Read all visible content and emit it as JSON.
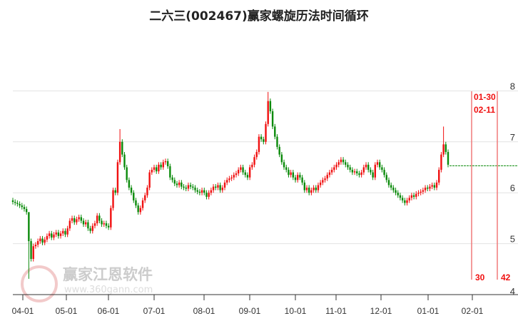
{
  "chart_data": {
    "type": "candlestick",
    "title": "二六三(002467)赢家螺旋历法时间循环",
    "yticks": [
      8,
      7,
      6,
      5,
      4
    ],
    "ylim": [
      4,
      8
    ],
    "xticks": [
      "04-01",
      "05-01",
      "06-01",
      "07-01",
      "08-01",
      "09-01",
      "10-01",
      "11-01",
      "12-01",
      "01-01",
      "02-01"
    ],
    "first_open": 5.85,
    "closes": [
      5.82,
      5.8,
      5.78,
      5.75,
      5.72,
      5.68,
      5.62,
      5.05,
      4.7,
      4.95,
      4.98,
      5.05,
      5.1,
      5.02,
      5.08,
      5.15,
      5.2,
      5.12,
      5.18,
      5.22,
      5.15,
      5.2,
      5.25,
      5.18,
      5.3,
      5.45,
      5.5,
      5.42,
      5.48,
      5.52,
      5.45,
      5.38,
      5.42,
      5.3,
      5.25,
      5.35,
      5.4,
      5.55,
      5.45,
      5.38,
      5.4,
      5.35,
      5.32,
      5.7,
      6.05,
      6.0,
      6.6,
      7.0,
      6.75,
      6.5,
      6.25,
      6.1,
      6.0,
      5.85,
      5.75,
      5.62,
      5.7,
      5.85,
      5.95,
      6.1,
      6.4,
      6.45,
      6.5,
      6.42,
      6.55,
      6.5,
      6.6,
      6.62,
      6.52,
      6.3,
      6.25,
      6.18,
      6.15,
      6.2,
      6.12,
      6.1,
      6.08,
      6.15,
      6.12,
      6.1,
      6.05,
      6.02,
      6.0,
      6.05,
      6.0,
      5.92,
      6.0,
      6.05,
      6.12,
      6.1,
      6.15,
      6.05,
      6.1,
      6.2,
      6.25,
      6.28,
      6.3,
      6.35,
      6.38,
      6.45,
      6.5,
      6.4,
      6.35,
      6.3,
      6.5,
      6.55,
      6.7,
      6.8,
      7.1,
      7.05,
      7.0,
      7.35,
      7.8,
      7.6,
      7.3,
      7.1,
      6.9,
      6.75,
      6.6,
      6.5,
      6.45,
      6.35,
      6.4,
      6.3,
      6.25,
      6.35,
      6.3,
      6.2,
      6.05,
      6.1,
      6.0,
      6.05,
      6.1,
      6.05,
      6.15,
      6.2,
      6.25,
      6.28,
      6.35,
      6.4,
      6.45,
      6.5,
      6.55,
      6.6,
      6.65,
      6.6,
      6.55,
      6.5,
      6.45,
      6.4,
      6.42,
      6.38,
      6.35,
      6.4,
      6.5,
      6.55,
      6.45,
      6.4,
      6.3,
      6.55,
      6.6,
      6.5,
      6.45,
      6.35,
      6.25,
      6.15,
      6.1,
      6.05,
      6.0,
      5.95,
      5.9,
      5.85,
      5.8,
      5.85,
      5.9,
      5.95,
      5.92,
      5.98,
      6.0,
      6.02,
      6.05,
      6.1,
      6.08,
      6.12,
      6.15,
      6.1,
      6.2,
      6.45,
      6.75,
      6.95,
      6.8,
      6.55
    ],
    "wick_overrides": {
      "7": [
        5.35,
        4.31
      ],
      "47": [
        7.25,
        6.55
      ],
      "112": [
        7.98,
        7.3
      ],
      "189": [
        7.3,
        6.7
      ]
    },
    "last_price_line": 6.53,
    "up_color": "#f01010",
    "down_color": "#0a8a0a",
    "cycle_lines": [
      {
        "date": "01-30",
        "count": "30"
      },
      {
        "date": "02-11",
        "count": "42"
      }
    ]
  },
  "watermark": {
    "logo": "江赢恩家",
    "name": "赢家江恩软件",
    "url": "www.360gann.com"
  }
}
